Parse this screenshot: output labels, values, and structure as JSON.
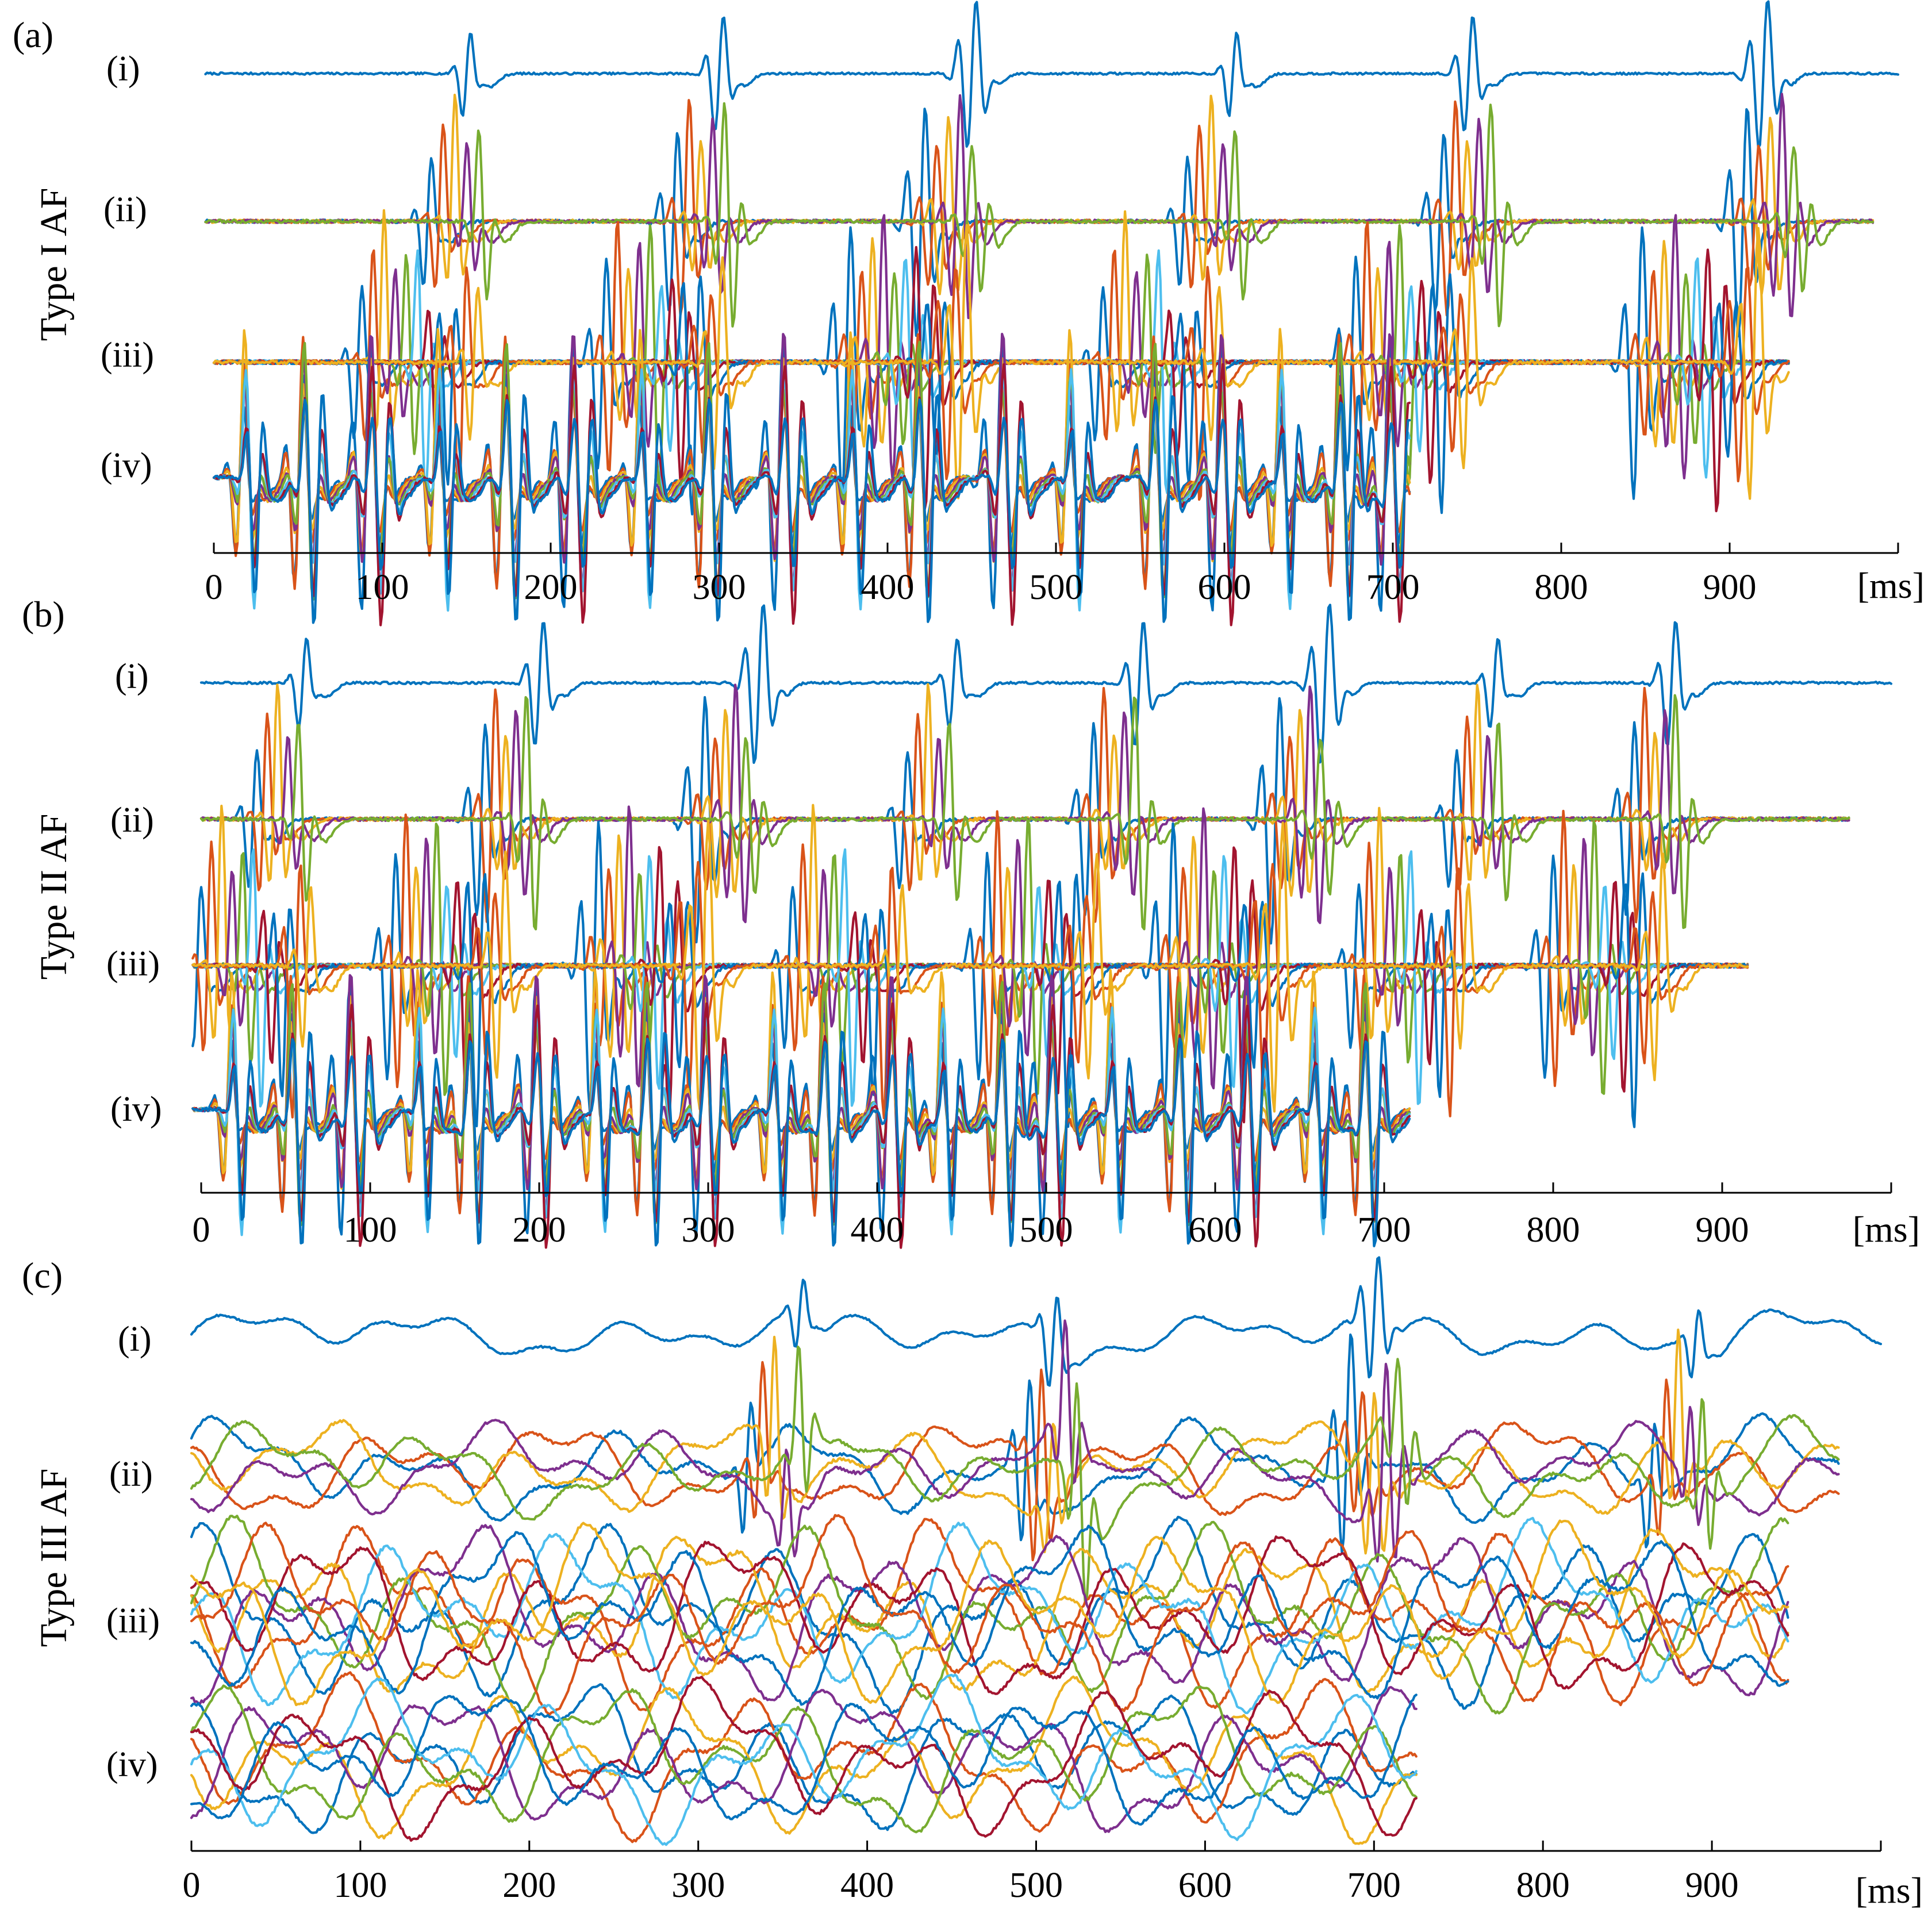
{
  "colors": [
    "#0072BD",
    "#D95319",
    "#EDB120",
    "#7E2F8E",
    "#77AC30",
    "#4DBEEE",
    "#A2142F"
  ],
  "chart_data": [
    {
      "type": "line",
      "panel": "(a)",
      "group_label": "Type I AF",
      "x_unit": "[ms]",
      "xlim": [
        0,
        1000
      ],
      "x_ticks": [
        0,
        100,
        200,
        300,
        400,
        500,
        600,
        700,
        800,
        900
      ],
      "grid": false,
      "rows": [
        {
          "label": "(i)",
          "channels": 1,
          "end_ms": 1000,
          "x_offset_ms": -5,
          "amplitude": 1.3,
          "noise": 0.0,
          "complex_times_ms": [
            150,
            300,
            450,
            605,
            745,
            920
          ],
          "complex_width_ms": 25
        },
        {
          "label": "(ii)",
          "channels": 5,
          "end_ms": 985,
          "x_offset_ms": -5,
          "amplitude": 1.4,
          "noise": 0.0,
          "complex_times_ms": [
            143,
            289,
            436,
            592,
            744,
            924
          ],
          "complex_width_ms": 45
        },
        {
          "label": "(iii)",
          "channels": 10,
          "end_ms": 935,
          "x_offset_ms": 0,
          "amplitude": 1.5,
          "noise": 0.0,
          "complex_times_ms": [
            120,
            265,
            410,
            560,
            710,
            880
          ],
          "complex_width_ms": 85
        },
        {
          "label": "(iv)",
          "channels": 8,
          "end_ms": 710,
          "x_offset_ms": 0,
          "amplitude": 1.7,
          "noise": 0.0,
          "complex_times_ms": [
            20,
            55,
            95,
            135,
            175,
            215,
            255,
            295,
            340,
            380,
            420,
            470,
            510,
            560,
            600,
            635,
            670,
            700
          ],
          "complex_width_ms": 12
        }
      ]
    },
    {
      "type": "line",
      "panel": "(b)",
      "group_label": "Type II AF",
      "x_unit": "[ms]",
      "xlim": [
        0,
        1000
      ],
      "x_ticks": [
        0,
        100,
        200,
        300,
        400,
        500,
        600,
        700,
        800,
        900
      ],
      "grid": false,
      "rows": [
        {
          "label": "(i)",
          "channels": 1,
          "end_ms": 1000,
          "x_offset_ms": 0,
          "amplitude": 1.4,
          "noise": 0.0,
          "complex_times_ms": [
            60,
            200,
            330,
            445,
            555,
            665,
            765,
            870
          ],
          "complex_width_ms": 25
        },
        {
          "label": "(ii)",
          "channels": 5,
          "end_ms": 975,
          "x_offset_ms": 0,
          "amplitude": 1.5,
          "noise": 0.0,
          "complex_times_ms": [
            45,
            180,
            310,
            430,
            540,
            650,
            755,
            860
          ],
          "complex_width_ms": 40
        },
        {
          "label": "(iii)",
          "channels": 10,
          "end_ms": 915,
          "x_offset_ms": -5,
          "amplitude": 1.6,
          "noise": 0.0,
          "complex_times_ms": [
            30,
            145,
            265,
            380,
            495,
            605,
            715,
            830
          ],
          "complex_width_ms": 80
        },
        {
          "label": "(iv)",
          "channels": 8,
          "end_ms": 715,
          "x_offset_ms": -5,
          "amplitude": 1.6,
          "noise": 0.0,
          "complex_times_ms": [
            20,
            55,
            90,
            130,
            160,
            200,
            235,
            265,
            300,
            340,
            370,
            410,
            440,
            475,
            505,
            540,
            580,
            620,
            660,
            690
          ],
          "complex_width_ms": 12
        }
      ]
    },
    {
      "type": "line",
      "panel": "(c)",
      "group_label": "Type III AF",
      "x_unit": "[ms]",
      "xlim": [
        0,
        1000
      ],
      "x_ticks": [
        0,
        100,
        200,
        300,
        400,
        500,
        600,
        700,
        800,
        900
      ],
      "grid": false,
      "rows": [
        {
          "label": "(i)",
          "channels": 1,
          "end_ms": 1000,
          "x_offset_ms": 0,
          "amplitude": 1.1,
          "noise": 0.6,
          "complex_times_ms": [
            360,
            510,
            700,
            890
          ],
          "complex_width_ms": 30
        },
        {
          "label": "(ii)",
          "channels": 5,
          "end_ms": 975,
          "x_offset_ms": 0,
          "amplitude": 1.3,
          "noise": 0.7,
          "complex_times_ms": [
            345,
            510,
            700,
            880
          ],
          "complex_width_ms": 45
        },
        {
          "label": "(iii)",
          "channels": 10,
          "end_ms": 945,
          "x_offset_ms": 0,
          "amplitude": 1.5,
          "noise": 1.0,
          "complex_times_ms": [],
          "complex_width_ms": 0
        },
        {
          "label": "(iv)",
          "channels": 8,
          "end_ms": 725,
          "x_offset_ms": 0,
          "amplitude": 1.5,
          "noise": 1.0,
          "complex_times_ms": [],
          "complex_width_ms": 0
        }
      ]
    }
  ]
}
